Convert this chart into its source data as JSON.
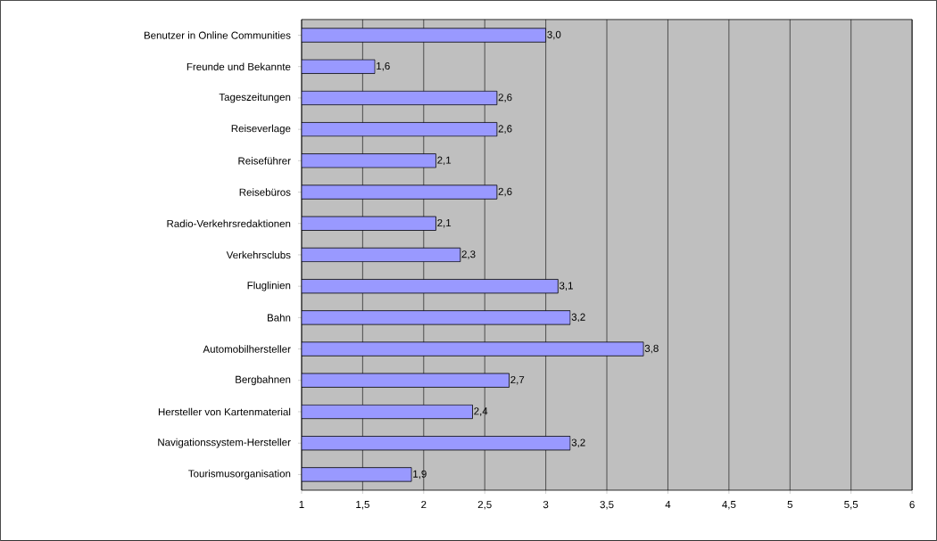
{
  "chart_data": {
    "type": "bar",
    "orientation": "horizontal",
    "categories": [
      "Benutzer in Online Communities",
      "Freunde und Bekannte",
      "Tageszeitungen",
      "Reiseverlage",
      "Reiseführer",
      "Reisebüros",
      "Radio-Verkehrsredaktionen",
      "Verkehrsclubs",
      "Fluglinien",
      "Bahn",
      "Automobilhersteller",
      "Bergbahnen",
      "Hersteller von Kartenmaterial",
      "Navigationssystem-Hersteller",
      "Tourismusorganisation"
    ],
    "values": [
      3.0,
      1.6,
      2.6,
      2.6,
      2.1,
      2.6,
      2.1,
      2.3,
      3.1,
      3.2,
      3.8,
      2.7,
      2.4,
      3.2,
      1.9
    ],
    "value_labels": [
      "3,0",
      "1,6",
      "2,6",
      "2,6",
      "2,1",
      "2,6",
      "2,1",
      "2,3",
      "3,1",
      "3,2",
      "3,8",
      "2,7",
      "2,4",
      "3,2",
      "1,9"
    ],
    "color": "#9999ff",
    "xlim": [
      1,
      6
    ],
    "xticks": [
      {
        "value": 1,
        "label": "1"
      },
      {
        "value": 1.5,
        "label": "1,5"
      },
      {
        "value": 2,
        "label": "2"
      },
      {
        "value": 2.5,
        "label": "2,5"
      },
      {
        "value": 3,
        "label": "3"
      },
      {
        "value": 3.5,
        "label": "3,5"
      },
      {
        "value": 4,
        "label": "4"
      },
      {
        "value": 4.5,
        "label": "4,5"
      },
      {
        "value": 5,
        "label": "5"
      },
      {
        "value": 5.5,
        "label": "5,5"
      },
      {
        "value": 6,
        "label": "6"
      }
    ],
    "grid": "x"
  }
}
